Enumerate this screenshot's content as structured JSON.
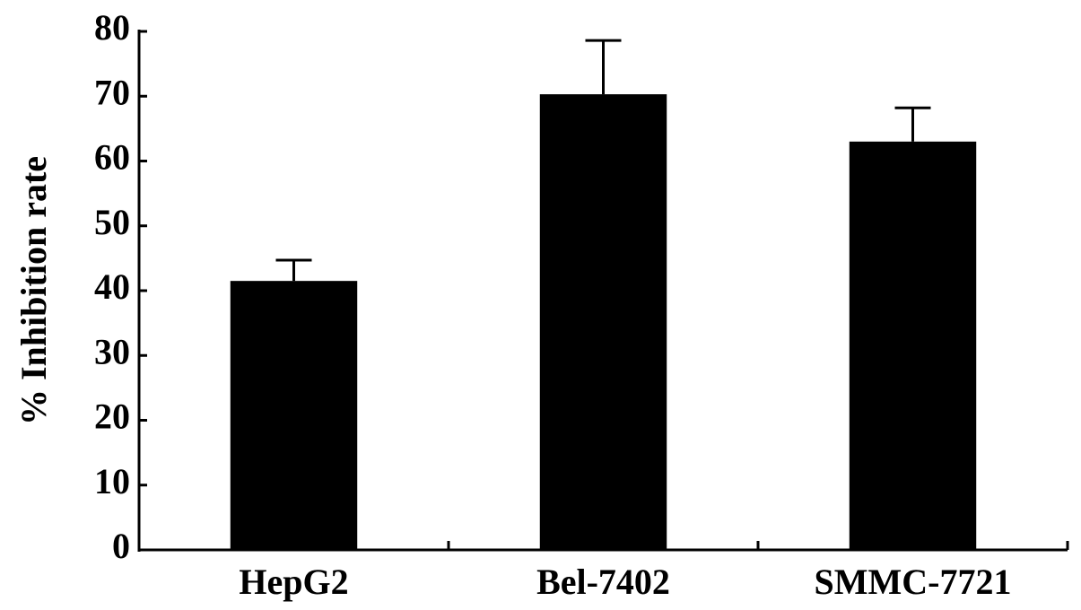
{
  "chart_data": {
    "type": "bar",
    "y_label": "% Inhibition rate",
    "categories": [
      "HepG2",
      "Bel-7402",
      "SMMC-7721"
    ],
    "values": [
      41.5,
      70.3,
      63
    ],
    "errors": [
      3.2,
      8.3,
      5.2
    ],
    "color": "#000000",
    "ylim": [
      0,
      80
    ],
    "yticks": [
      0,
      10,
      20,
      30,
      40,
      50,
      60,
      70,
      80
    ],
    "grid": false
  }
}
